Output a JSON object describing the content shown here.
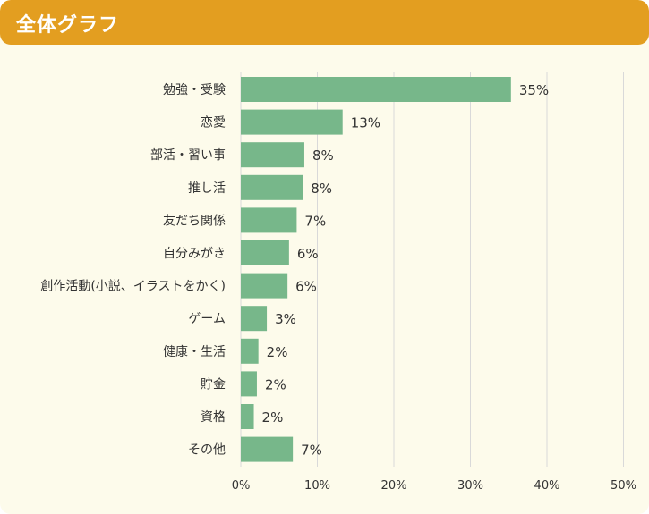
{
  "header": {
    "title": "全体グラフ"
  },
  "colors": {
    "header": "#e39e20",
    "background": "#fdfbeb",
    "bar": "#77b78a",
    "grid": "#d9d9d9"
  },
  "chart_data": {
    "type": "bar",
    "orientation": "horizontal",
    "title": "",
    "xlabel": "",
    "ylabel": "",
    "xlim": [
      0,
      50
    ],
    "grid": true,
    "categories": [
      "勉強・受験",
      "恋愛",
      "部活・習い事",
      "推し活",
      "友だち関係",
      "自分みがき",
      "創作活動(小説、イラストをかく)",
      "ゲーム",
      "健康・生活",
      "貯金",
      "資格",
      "その他"
    ],
    "values": [
      35,
      13,
      8,
      8,
      7,
      6,
      6,
      3,
      2,
      2,
      2,
      7
    ],
    "value_labels": [
      "35%",
      "13%",
      "8%",
      "8%",
      "7%",
      "6%",
      "6%",
      "3%",
      "2%",
      "2%",
      "2%",
      "7%"
    ],
    "bar_lengths": [
      35.3,
      13.3,
      8.3,
      8.1,
      7.3,
      6.3,
      6.1,
      3.4,
      2.3,
      2.1,
      1.7,
      6.8
    ],
    "ticks": [
      0,
      10,
      20,
      30,
      40,
      50
    ],
    "tick_labels": [
      "0%",
      "10%",
      "20%",
      "30%",
      "40%",
      "50%"
    ]
  }
}
